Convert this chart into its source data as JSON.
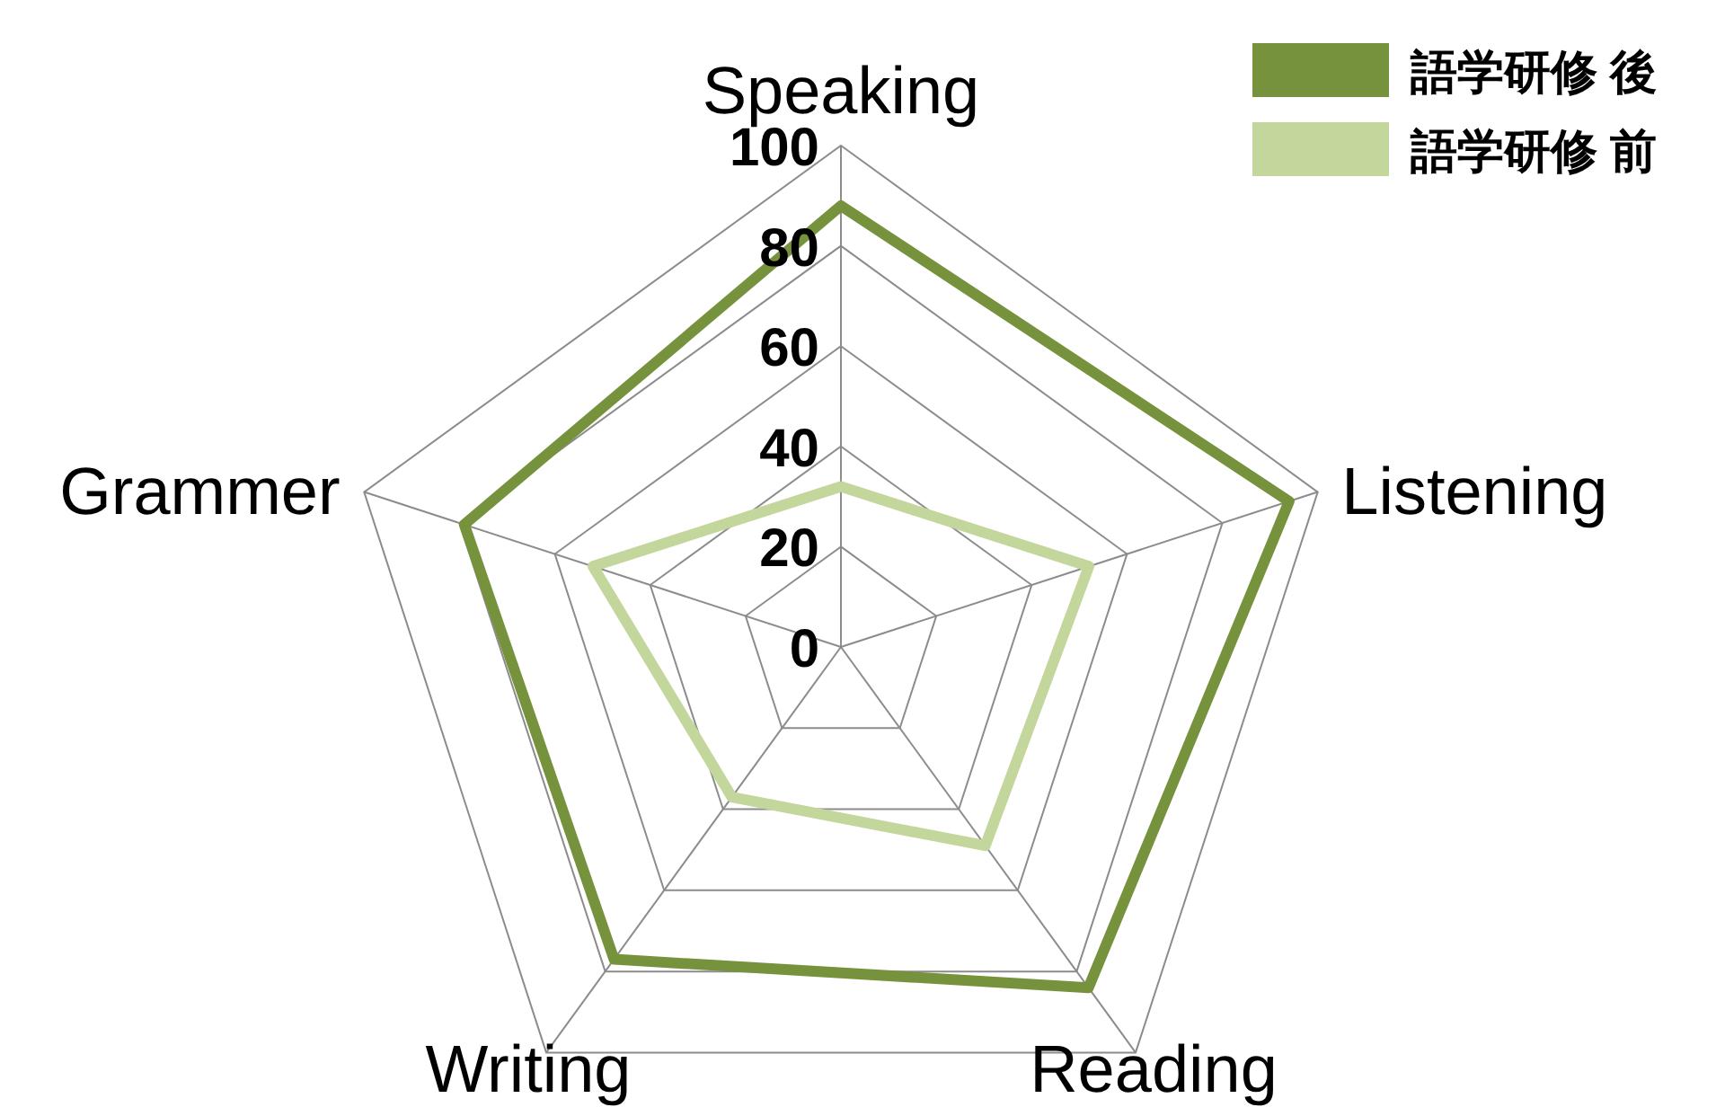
{
  "chart_data": {
    "type": "radar",
    "categories": [
      "Speaking",
      "Listening",
      "Reading",
      "Writing",
      "Grammer"
    ],
    "series": [
      {
        "name": "語学研修 後",
        "color": "#76923c",
        "values": [
          88,
          94,
          84,
          77,
          79
        ]
      },
      {
        "name": "語学研修 前",
        "color": "#c3d69b",
        "values": [
          32,
          52,
          49,
          37,
          52
        ]
      }
    ],
    "ylim": [
      0,
      100
    ],
    "yticks": [
      0,
      20,
      40,
      60,
      80,
      100
    ],
    "grid": true,
    "legend": "top right"
  }
}
